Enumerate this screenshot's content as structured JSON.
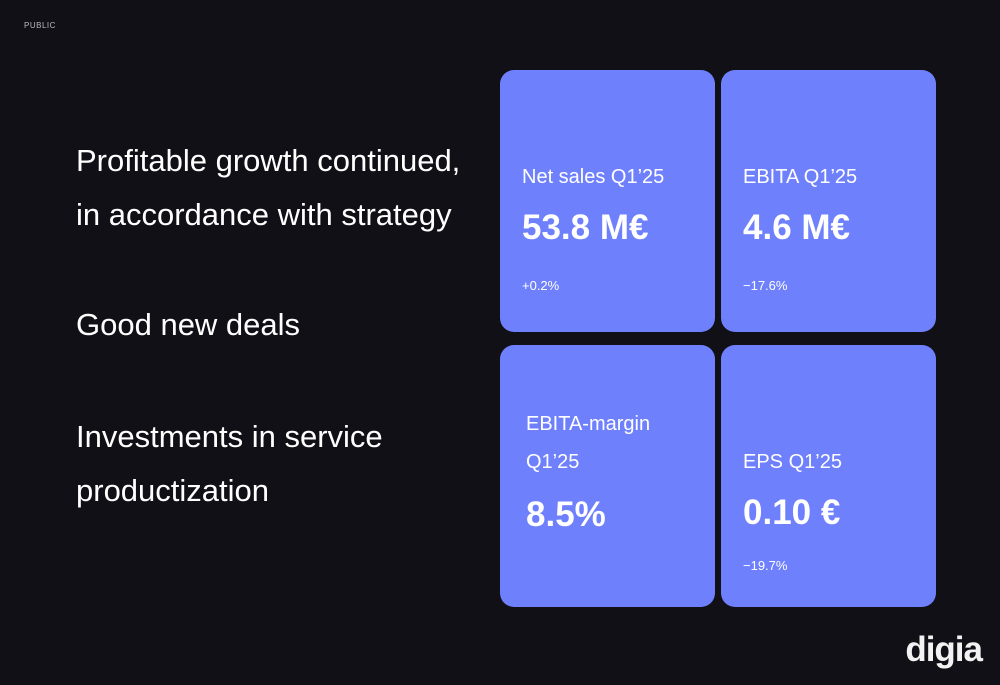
{
  "classification": "PUBLIC",
  "highlights": [
    {
      "text": "Profitable growth continued, in accordance with strategy"
    },
    {
      "text": "Good new deals"
    },
    {
      "text": "Investments in service productization"
    }
  ],
  "cards": [
    {
      "label": "Net sales Q1’25",
      "value": "53.8 M€",
      "change": "+0.2%"
    },
    {
      "label": "EBITA Q1’25",
      "value": "4.6 M€",
      "change": "−17.6%"
    },
    {
      "label": "EBITA-margin Q1’25",
      "value": "8.5%",
      "change": ""
    },
    {
      "label": "EPS Q1’25",
      "value": "0.10 €",
      "change": "−19.7%"
    }
  ],
  "logo_text": "digia",
  "colors": {
    "background": "#111016",
    "card": "#6f80fd",
    "text": "#ffffff"
  }
}
